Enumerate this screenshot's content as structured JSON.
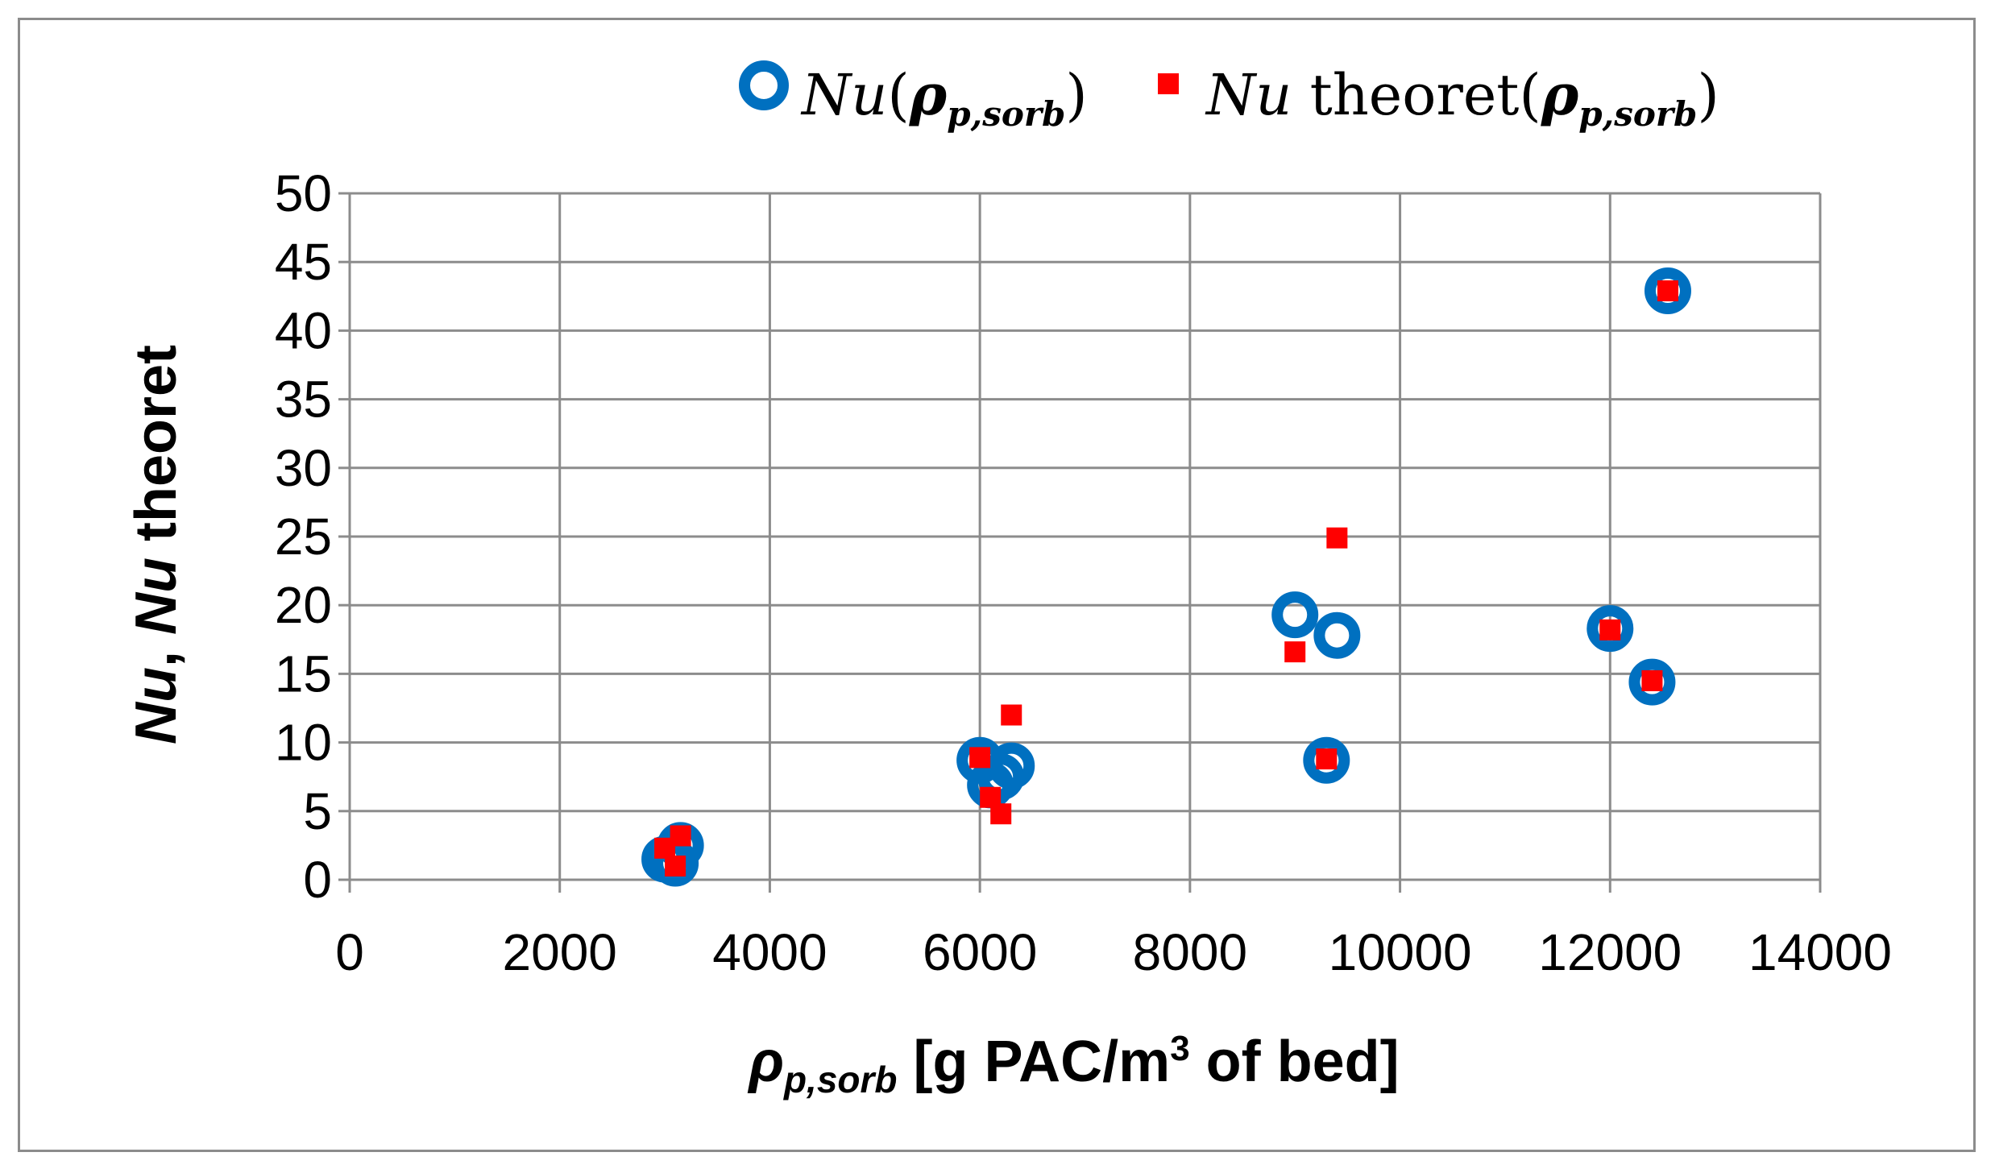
{
  "chart_data": {
    "type": "scatter",
    "title": "",
    "xlabel": "ρp,sorb [g PAC/m3 of bed]",
    "xlabel_parts": {
      "symbol": "ρ",
      "subscript": "p,sorb",
      "text": " [g PAC/m",
      "sup": "3",
      "tail": " of bed]"
    },
    "ylabel": "Nu, Nu theoret",
    "ylabel_parts": {
      "a": "Nu",
      "b": ", ",
      "c": "Nu",
      "d": " theoret"
    },
    "xlim": [
      0,
      14000
    ],
    "ylim": [
      0,
      50
    ],
    "xticks": [
      0,
      2000,
      4000,
      6000,
      8000,
      10000,
      12000,
      14000
    ],
    "yticks": [
      0,
      5,
      10,
      15,
      20,
      25,
      30,
      35,
      40,
      45,
      50
    ],
    "grid": true,
    "legend_position": "top",
    "series": [
      {
        "name": "Nu(ρp,sorb)",
        "legend": {
          "a": "Nu",
          "b": "(",
          "c": "ρ",
          "d": "p,sorb",
          "e": ")"
        },
        "marker": "hollow-circle",
        "color": "#0070c0",
        "points": [
          [
            3000,
            1.5
          ],
          [
            3100,
            1.2
          ],
          [
            3150,
            2.5
          ],
          [
            6000,
            8.7
          ],
          [
            6100,
            6.9
          ],
          [
            6200,
            7.5
          ],
          [
            6300,
            8.3
          ],
          [
            9000,
            19.3
          ],
          [
            9400,
            17.8
          ],
          [
            9300,
            8.7
          ],
          [
            12000,
            18.3
          ],
          [
            12400,
            14.4
          ],
          [
            12550,
            42.9
          ]
        ]
      },
      {
        "name": "Nu theoret(ρp,sorb)",
        "legend": {
          "a": "Nu",
          "b": " theoret(",
          "c": "ρ",
          "d": "p,sorb",
          "e": ")"
        },
        "marker": "filled-square",
        "color": "#ff0000",
        "points": [
          [
            3000,
            2.3
          ],
          [
            3100,
            1.0
          ],
          [
            3150,
            3.2
          ],
          [
            6000,
            8.9
          ],
          [
            6100,
            6.0
          ],
          [
            6200,
            4.8
          ],
          [
            6300,
            12.0
          ],
          [
            9000,
            16.6
          ],
          [
            9400,
            24.9
          ],
          [
            9300,
            8.8
          ],
          [
            12000,
            18.2
          ],
          [
            12400,
            14.5
          ],
          [
            12550,
            42.9
          ]
        ]
      }
    ]
  }
}
